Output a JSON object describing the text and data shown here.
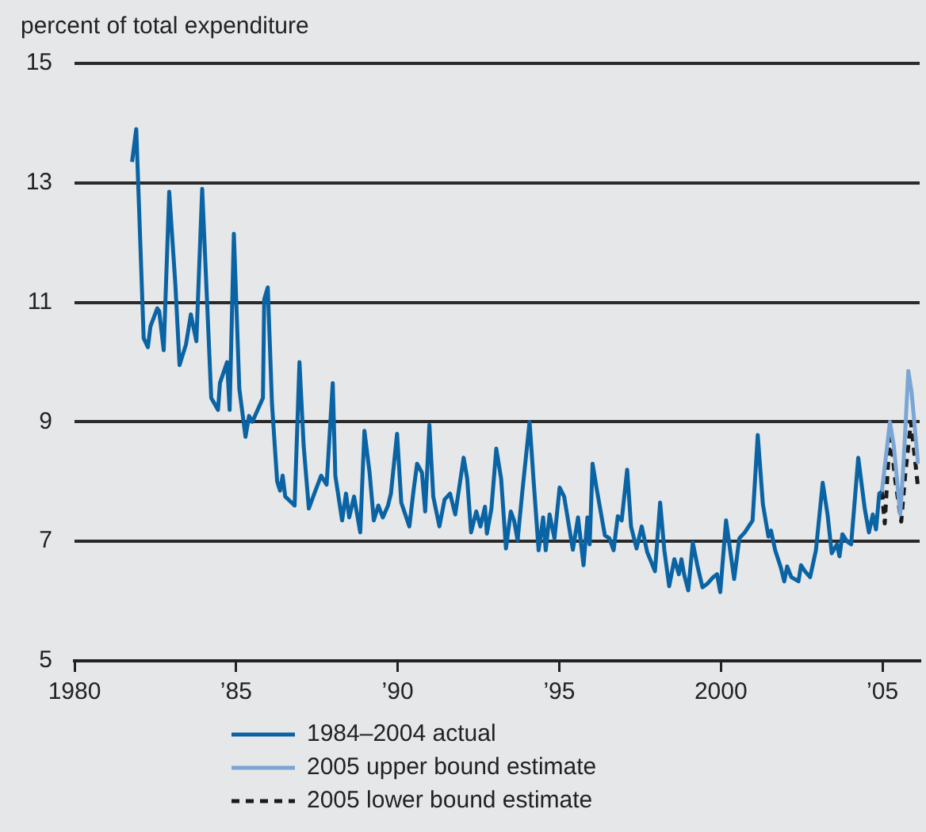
{
  "chart_data": {
    "type": "line",
    "ylabel": "percent of total expenditure",
    "xlim": [
      1980,
      2006.15
    ],
    "xticks": [
      1980,
      {
        "value": 1985,
        "label": "’85"
      },
      {
        "value": 1990,
        "label": "’90"
      },
      {
        "value": 1995,
        "label": "’95"
      },
      2000,
      {
        "value": 2005,
        "label": "’05"
      }
    ],
    "ylim": [
      5,
      15
    ],
    "yticks": [
      5,
      7,
      9,
      11,
      13,
      15
    ],
    "grid": "y",
    "legend": "bottom",
    "marker": "none",
    "series": [
      {
        "name": "1984–2004 actual",
        "color": "#0a64a4",
        "line_style": "solid",
        "x": [
          1981.78,
          1981.91,
          1982.14,
          1982.27,
          1982.35,
          1982.56,
          1982.62,
          1982.76,
          1982.93,
          1983.12,
          1983.25,
          1983.45,
          1983.6,
          1983.77,
          1983.95,
          1984.07,
          1984.23,
          1984.44,
          1984.5,
          1984.72,
          1984.8,
          1984.93,
          1985.1,
          1985.29,
          1985.4,
          1985.5,
          1985.83,
          1985.87,
          1985.98,
          1986.11,
          1986.27,
          1986.36,
          1986.44,
          1986.52,
          1986.81,
          1986.96,
          1987.09,
          1987.25,
          1987.42,
          1987.63,
          1987.8,
          1987.99,
          1988.07,
          1988.28,
          1988.4,
          1988.5,
          1988.65,
          1988.84,
          1988.97,
          1989.13,
          1989.26,
          1989.4,
          1989.54,
          1989.7,
          1989.79,
          1989.98,
          1990.11,
          1990.36,
          1990.49,
          1990.6,
          1990.75,
          1990.85,
          1990.98,
          1991.1,
          1991.29,
          1991.45,
          1991.62,
          1991.78,
          1992.04,
          1992.15,
          1992.27,
          1992.43,
          1992.56,
          1992.7,
          1992.76,
          1992.9,
          1993.05,
          1993.2,
          1993.35,
          1993.5,
          1993.6,
          1993.71,
          1993.85,
          1994.08,
          1994.2,
          1994.36,
          1994.5,
          1994.58,
          1994.7,
          1994.85,
          1995.01,
          1995.15,
          1995.42,
          1995.58,
          1995.75,
          1995.87,
          1995.94,
          1996.03,
          1996.15,
          1996.41,
          1996.55,
          1996.68,
          1996.81,
          1996.93,
          1997.1,
          1997.22,
          1997.39,
          1997.55,
          1997.72,
          1997.96,
          1998.12,
          1998.25,
          1998.4,
          1998.56,
          1998.7,
          1998.78,
          1998.86,
          1998.99,
          1999.13,
          1999.27,
          1999.43,
          1999.6,
          1999.76,
          1999.88,
          1999.98,
          2000.16,
          2000.41,
          2000.57,
          2000.74,
          2000.98,
          2001.14,
          2001.3,
          2001.47,
          2001.55,
          2001.68,
          2001.85,
          2001.96,
          2002.05,
          2002.18,
          2002.4,
          2002.48,
          2002.6,
          2002.76,
          2002.84,
          2002.94,
          2003.15,
          2003.3,
          2003.43,
          2003.59,
          2003.67,
          2003.76,
          2003.9,
          2004.03,
          2004.25,
          2004.45,
          2004.58,
          2004.7,
          2004.8,
          2004.9,
          2004.98
        ],
        "values": [
          13.35,
          13.9,
          10.4,
          10.25,
          10.6,
          10.9,
          10.85,
          10.2,
          12.85,
          11.3,
          9.95,
          10.3,
          10.8,
          10.35,
          12.9,
          11.4,
          9.4,
          9.2,
          9.65,
          10.0,
          9.2,
          12.15,
          9.55,
          8.75,
          9.1,
          9.0,
          9.4,
          11.05,
          11.25,
          9.3,
          8.0,
          7.85,
          8.1,
          7.75,
          7.6,
          10.0,
          8.6,
          7.55,
          7.8,
          8.1,
          7.95,
          9.65,
          8.1,
          7.35,
          7.8,
          7.4,
          7.75,
          7.15,
          8.85,
          8.15,
          7.35,
          7.6,
          7.4,
          7.6,
          7.8,
          8.8,
          7.65,
          7.25,
          7.85,
          8.3,
          8.15,
          7.5,
          8.95,
          7.75,
          7.25,
          7.7,
          7.8,
          7.45,
          8.4,
          8.05,
          7.15,
          7.5,
          7.25,
          7.58,
          7.13,
          7.55,
          8.55,
          8.05,
          6.88,
          7.5,
          7.35,
          7.02,
          7.8,
          9.0,
          8.05,
          6.85,
          7.4,
          6.85,
          7.45,
          7.05,
          7.9,
          7.75,
          6.86,
          7.4,
          6.6,
          7.4,
          6.95,
          8.3,
          7.9,
          7.1,
          7.05,
          6.85,
          7.42,
          7.35,
          8.2,
          7.25,
          6.88,
          7.25,
          6.82,
          6.5,
          7.65,
          6.85,
          6.25,
          6.7,
          6.45,
          6.7,
          6.45,
          6.18,
          6.98,
          6.6,
          6.23,
          6.3,
          6.4,
          6.45,
          6.15,
          7.35,
          6.37,
          7.05,
          7.15,
          7.35,
          8.78,
          7.62,
          7.08,
          7.18,
          6.85,
          6.57,
          6.33,
          6.58,
          6.4,
          6.33,
          6.6,
          6.5,
          6.4,
          6.6,
          6.85,
          7.98,
          7.45,
          6.8,
          6.95,
          6.75,
          7.12,
          7.0,
          6.95,
          8.4,
          7.55,
          7.15,
          7.45,
          7.2,
          7.8,
          7.83
        ]
      },
      {
        "name": "2005 upper bound estimate",
        "color": "#7aa6d6",
        "line_style": "solid",
        "x": [
          2004.98,
          2005.23,
          2005.35,
          2005.55,
          2005.65,
          2005.8,
          2005.9,
          2006.1
        ],
        "values": [
          7.83,
          9.0,
          8.6,
          7.45,
          8.3,
          9.85,
          9.5,
          8.3
        ]
      },
      {
        "name": "2005 lower bound estimate",
        "color": "#1a1a1a",
        "line_style": "dashed",
        "x": [
          2004.98,
          2005.07,
          2005.23,
          2005.4,
          2005.58,
          2005.7,
          2005.88,
          2006.1
        ],
        "values": [
          7.83,
          7.3,
          8.85,
          8.0,
          7.33,
          8.1,
          9.0,
          7.9
        ]
      }
    ]
  }
}
